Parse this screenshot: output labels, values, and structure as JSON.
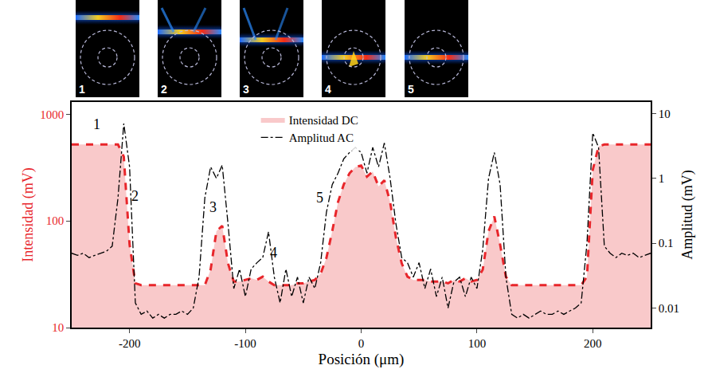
{
  "chart_data": {
    "type": "line",
    "xlabel": "Posición (μm)",
    "ylabel": "Intensidad (mV)",
    "y2label": "Amplitud (mV)",
    "log": "y",
    "grid": false,
    "legend": "top",
    "xlim": [
      -250,
      250
    ],
    "xticks": [
      -200,
      -100,
      0,
      100,
      200
    ],
    "ylim": [
      10,
      1300
    ],
    "yticks": [
      10,
      100,
      1000
    ],
    "y2lim": [
      0.005,
      15
    ],
    "y2ticks": [
      0.01,
      0.1,
      1,
      10
    ],
    "x": [
      -250,
      -245,
      -240,
      -235,
      -230,
      -225,
      -220,
      -215,
      -210,
      -205,
      -200,
      -195,
      -190,
      -185,
      -180,
      -175,
      -170,
      -165,
      -160,
      -155,
      -150,
      -145,
      -140,
      -135,
      -130,
      -125,
      -120,
      -115,
      -110,
      -105,
      -100,
      -95,
      -90,
      -85,
      -80,
      -75,
      -70,
      -65,
      -60,
      -55,
      -50,
      -45,
      -40,
      -35,
      -30,
      -25,
      -20,
      -15,
      -10,
      -5,
      0,
      5,
      10,
      15,
      20,
      25,
      30,
      35,
      40,
      45,
      50,
      55,
      60,
      65,
      70,
      75,
      80,
      85,
      90,
      95,
      100,
      105,
      110,
      115,
      120,
      125,
      130,
      135,
      140,
      145,
      150,
      155,
      160,
      165,
      170,
      175,
      180,
      185,
      190,
      195,
      200,
      205,
      210,
      215,
      220,
      225,
      230,
      235,
      240,
      245,
      250
    ],
    "series": [
      {
        "name": "Intensidad DC",
        "type": "area",
        "color": "#e8262b",
        "line_style": "dash",
        "values": [
          520,
          520,
          520,
          520,
          520,
          520,
          520,
          520,
          520,
          400,
          60,
          26,
          25,
          25,
          25,
          25,
          25,
          25,
          25,
          25,
          25,
          25,
          25,
          25,
          35,
          80,
          90,
          40,
          27,
          27,
          28,
          29,
          28,
          30,
          27,
          25,
          25,
          25,
          25,
          26,
          26,
          27,
          28,
          32,
          45,
          80,
          150,
          220,
          280,
          320,
          330,
          260,
          290,
          210,
          240,
          150,
          70,
          40,
          30,
          28,
          28,
          28,
          27,
          27,
          27,
          26,
          28,
          27,
          29,
          27,
          28,
          35,
          80,
          110,
          60,
          30,
          25,
          25,
          25,
          25,
          25,
          25,
          25,
          25,
          25,
          25,
          25,
          25,
          25,
          30,
          300,
          500,
          520,
          520,
          520,
          520,
          520,
          520,
          520,
          520,
          520
        ]
      },
      {
        "name": "Amplitud AC",
        "type": "line",
        "color": "#000000",
        "line_style": "dashdot",
        "axis": "y2",
        "values": [
          0.07,
          0.065,
          0.07,
          0.06,
          0.065,
          0.07,
          0.075,
          0.09,
          0.5,
          7,
          1.5,
          0.012,
          0.008,
          0.009,
          0.007,
          0.008,
          0.007,
          0.008,
          0.008,
          0.009,
          0.008,
          0.01,
          0.03,
          0.5,
          1.5,
          1.0,
          1.6,
          0.2,
          0.02,
          0.04,
          0.015,
          0.04,
          0.05,
          0.06,
          0.15,
          0.03,
          0.012,
          0.04,
          0.015,
          0.03,
          0.012,
          0.03,
          0.02,
          0.05,
          0.3,
          0.8,
          1.2,
          2.0,
          2.5,
          3,
          2.5,
          1.2,
          3,
          1.5,
          3.5,
          1.0,
          0.2,
          0.06,
          0.05,
          0.03,
          0.05,
          0.02,
          0.04,
          0.015,
          0.03,
          0.01,
          0.025,
          0.03,
          0.015,
          0.03,
          0.02,
          0.08,
          1.0,
          2.5,
          0.8,
          0.03,
          0.008,
          0.007,
          0.008,
          0.007,
          0.008,
          0.009,
          0.008,
          0.008,
          0.009,
          0.008,
          0.009,
          0.01,
          0.012,
          0.1,
          5,
          3,
          0.09,
          0.07,
          0.06,
          0.07,
          0.065,
          0.07,
          0.06,
          0.065,
          0.07
        ]
      }
    ],
    "annotations": [
      {
        "text": "1",
        "x": -228,
        "y": 800
      },
      {
        "text": "2",
        "x": -195,
        "y": 170
      },
      {
        "text": "3",
        "x": -128,
        "y": 135
      },
      {
        "text": "4",
        "x": -76,
        "y": 50
      },
      {
        "text": "5",
        "x": -36,
        "y": 165
      }
    ],
    "insets": [
      "1",
      "2",
      "3",
      "4",
      "5"
    ]
  }
}
